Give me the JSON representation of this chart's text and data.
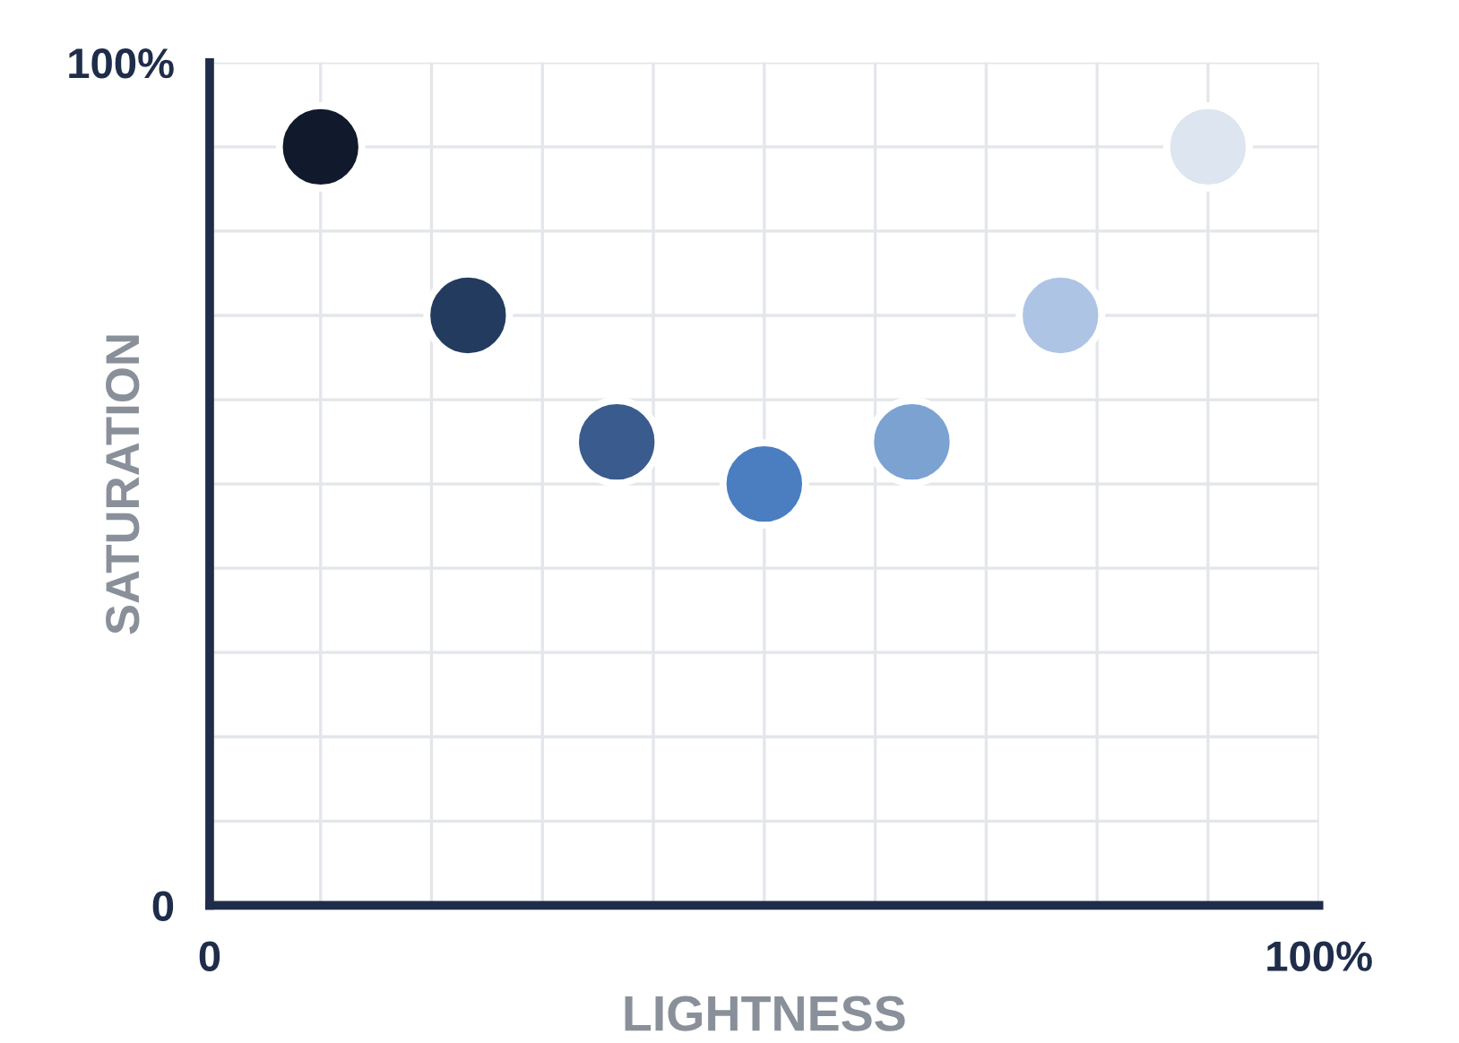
{
  "chart_data": {
    "type": "scatter",
    "xlabel": "LIGHTNESS",
    "ylabel": "SATURATION",
    "x": [
      10,
      23.3,
      36.7,
      50,
      63.3,
      76.7,
      90
    ],
    "values": [
      90,
      70,
      55,
      50,
      55,
      70,
      90
    ],
    "colors": [
      "#111a2c",
      "#243b60",
      "#3a5b8d",
      "#4a7ec0",
      "#7ca2d2",
      "#adc4e4",
      "#dce5f0"
    ],
    "marker": "circle",
    "xlim": [
      0,
      100
    ],
    "ylim": [
      0,
      100
    ],
    "xticks": [
      {
        "value": 0,
        "label": "0"
      },
      {
        "value": 10,
        "label": null
      },
      {
        "value": 20,
        "label": null
      },
      {
        "value": 30,
        "label": null
      },
      {
        "value": 40,
        "label": null
      },
      {
        "value": 50,
        "label": null
      },
      {
        "value": 60,
        "label": null
      },
      {
        "value": 70,
        "label": null
      },
      {
        "value": 80,
        "label": null
      },
      {
        "value": 90,
        "label": null
      },
      {
        "value": 100,
        "label": "100%"
      }
    ],
    "yticks": [
      {
        "value": 0,
        "label": "0"
      },
      {
        "value": 10,
        "label": null
      },
      {
        "value": 20,
        "label": null
      },
      {
        "value": 30,
        "label": null
      },
      {
        "value": 40,
        "label": null
      },
      {
        "value": 50,
        "label": null
      },
      {
        "value": 60,
        "label": null
      },
      {
        "value": 70,
        "label": null
      },
      {
        "value": 80,
        "label": null
      },
      {
        "value": 90,
        "label": null
      },
      {
        "value": 100,
        "label": "100%"
      }
    ],
    "grid": true
  }
}
